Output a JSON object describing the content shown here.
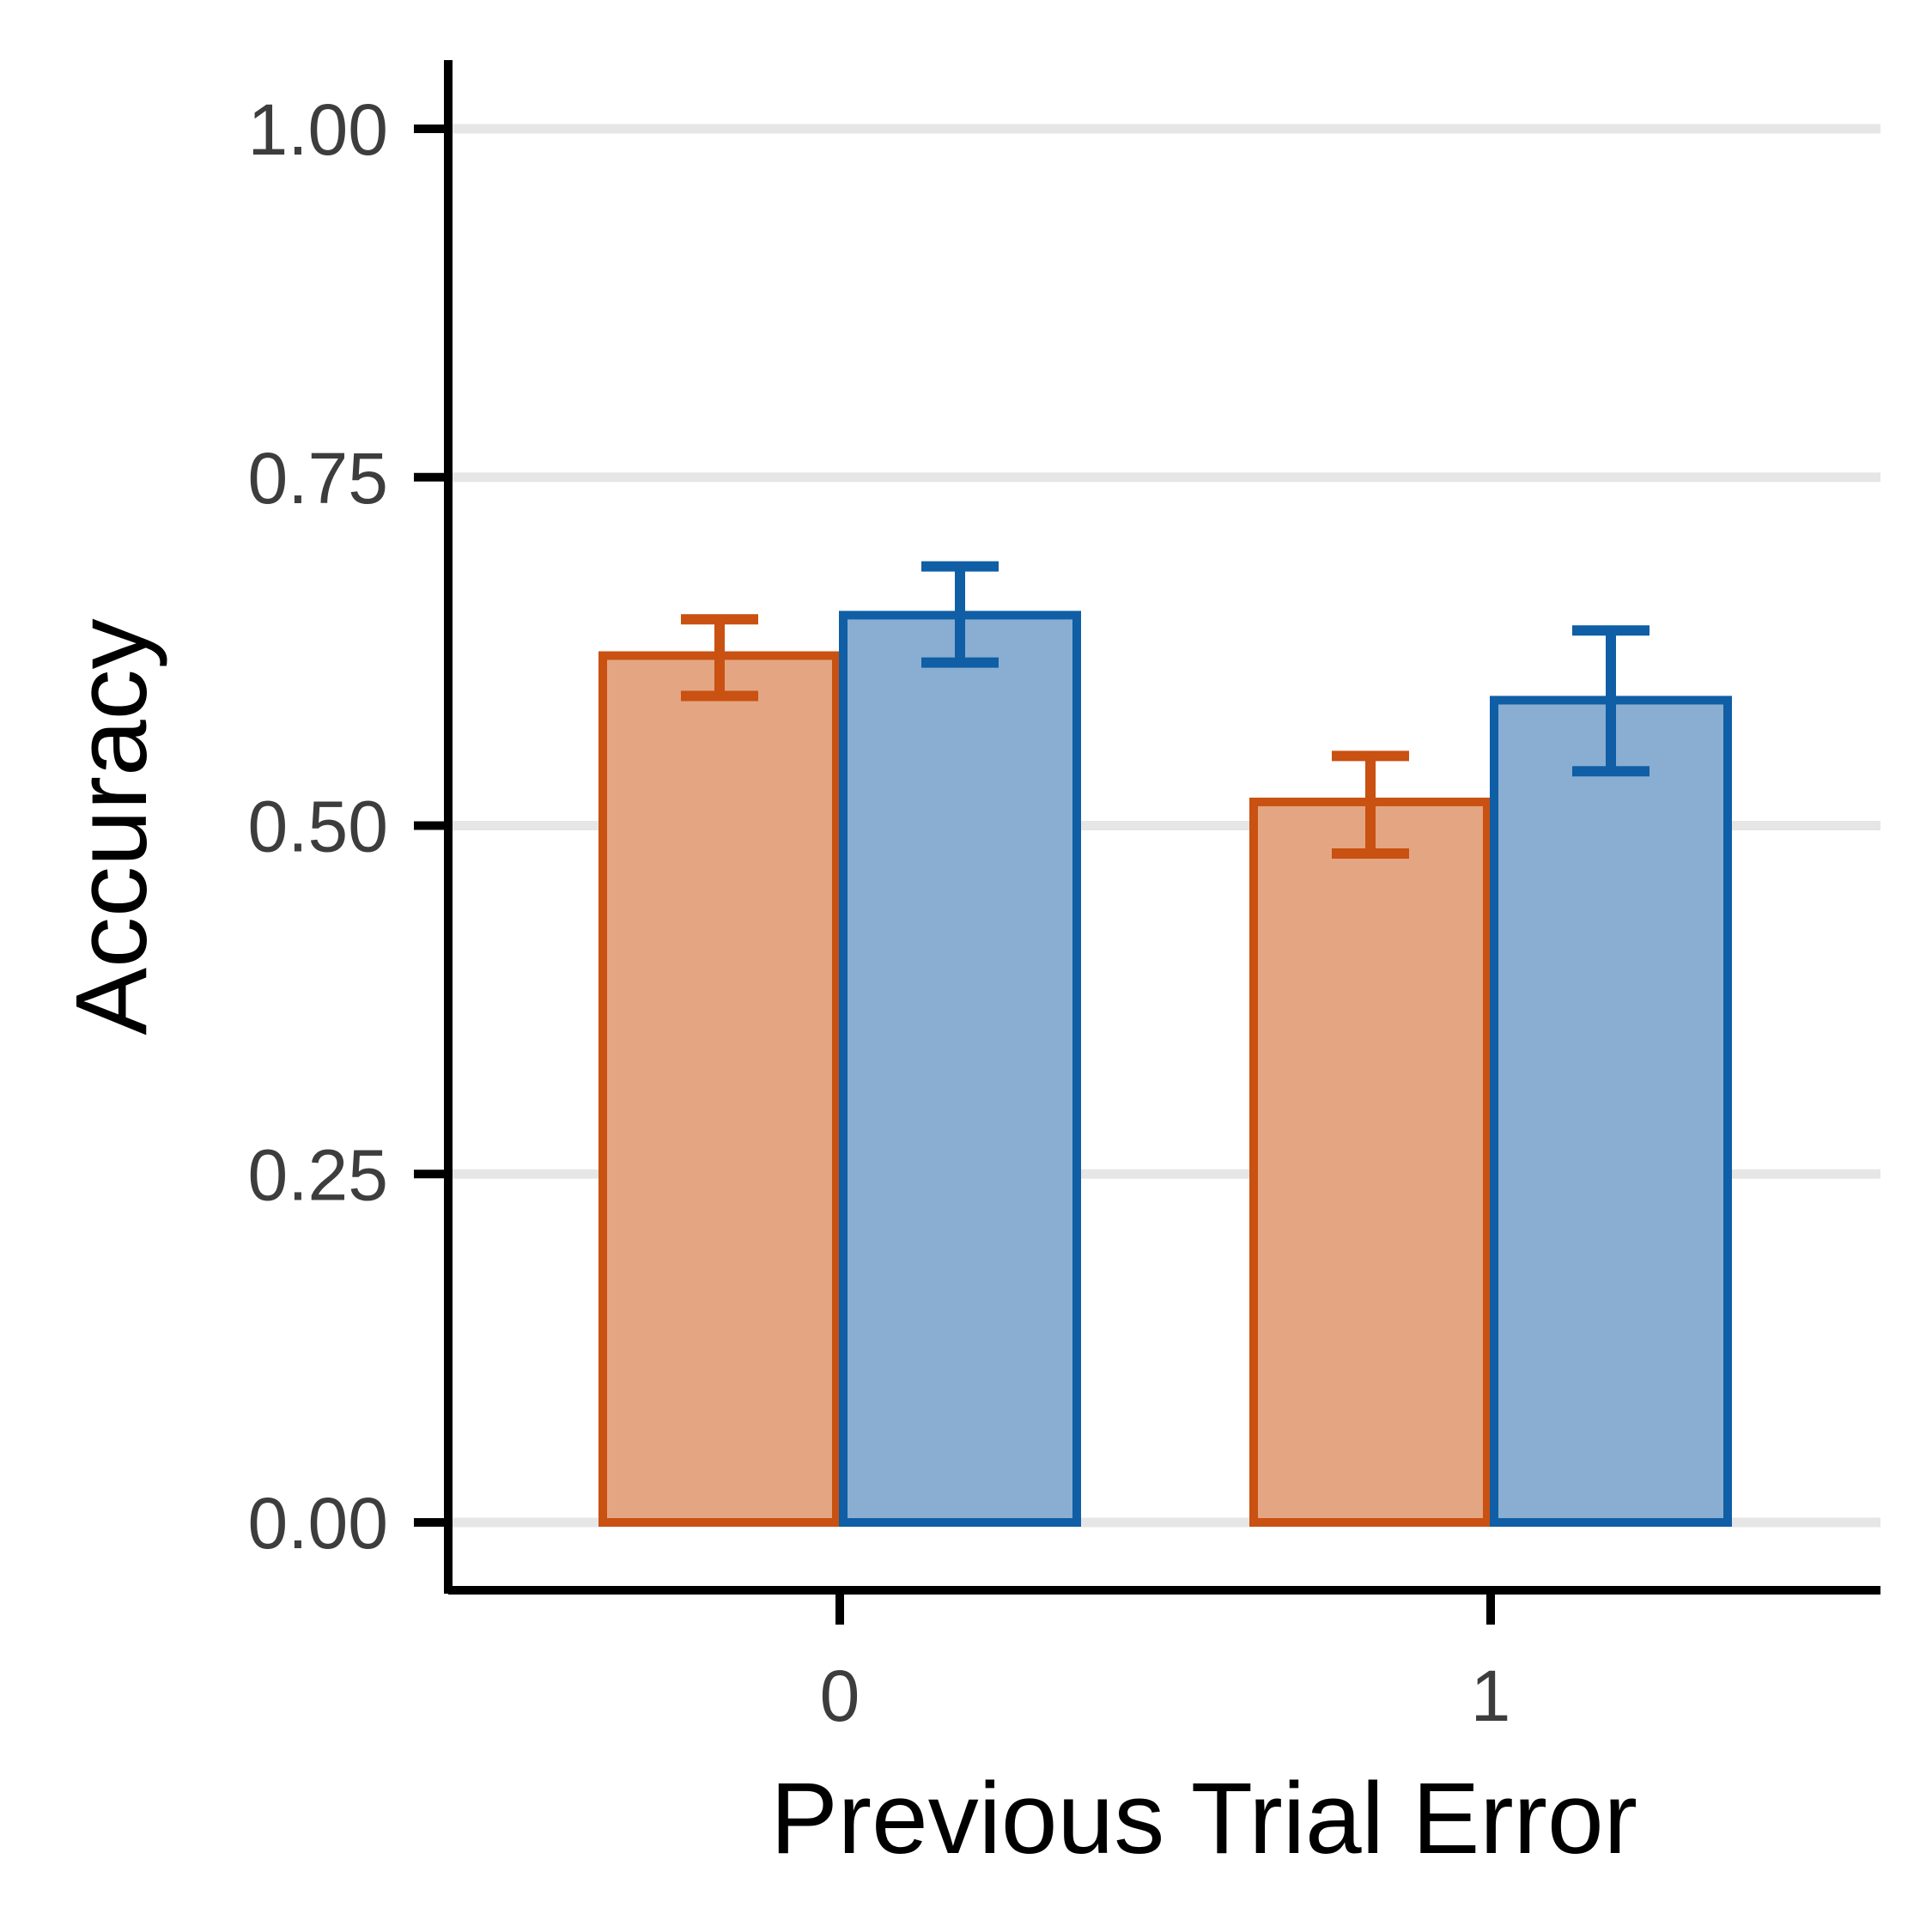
{
  "chart_data": {
    "type": "bar",
    "xlabel": "Previous Trial Error",
    "ylabel": "Accuracy",
    "categories": [
      "0",
      "1"
    ],
    "ylim": [
      -0.1,
      1.05
    ],
    "yticks": [
      0.0,
      0.25,
      0.5,
      0.75,
      1.0
    ],
    "ytick_labels": [
      "0.00",
      "0.25",
      "0.50",
      "0.75",
      "1.00"
    ],
    "grid": "horizontal",
    "legend": "none",
    "series": [
      {
        "color": "#c95111",
        "fill": "#e4a582",
        "values": [
          0.622,
          0.517
        ],
        "err_low": [
          0.593,
          0.48
        ],
        "err_high": [
          0.648,
          0.55
        ]
      },
      {
        "color": "#0f5ea6",
        "fill": "#89aed1",
        "values": [
          0.651,
          0.59
        ],
        "err_low": [
          0.617,
          0.539
        ],
        "err_high": [
          0.686,
          0.64
        ]
      }
    ]
  }
}
